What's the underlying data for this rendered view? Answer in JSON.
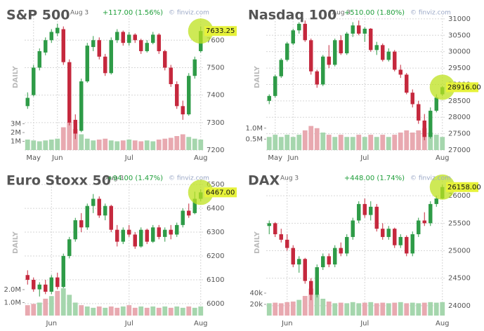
{
  "chart_data": [
    {
      "type": "candlestick",
      "title": "S&P 500",
      "date_label": "Aug 3",
      "change": "+117.00 (1.56%)",
      "watermark": "© finviz.com",
      "period": "DAILY",
      "last_label": "7633.25",
      "categories": [
        null,
        "May",
        null,
        null,
        null,
        "Jun",
        null,
        null,
        null,
        null,
        null,
        null,
        null,
        null,
        null,
        null,
        null,
        "Jul",
        null,
        null,
        null,
        null,
        null,
        null,
        null,
        null,
        null,
        null,
        null,
        "Aug"
      ],
      "ohlc": [
        [
          7360,
          7410,
          7350,
          7390
        ],
        [
          7400,
          7510,
          7395,
          7500
        ],
        [
          7500,
          7570,
          7490,
          7560
        ],
        [
          7555,
          7610,
          7545,
          7600
        ],
        [
          7600,
          7640,
          7590,
          7630
        ],
        [
          7625,
          7660,
          7615,
          7645
        ],
        [
          7640,
          7650,
          7510,
          7520
        ],
        [
          7520,
          7530,
          7290,
          7300
        ],
        [
          7310,
          7330,
          7240,
          7260
        ],
        [
          7270,
          7460,
          7265,
          7450
        ],
        [
          7450,
          7590,
          7445,
          7580
        ],
        [
          7575,
          7615,
          7560,
          7600
        ],
        [
          7600,
          7610,
          7530,
          7540
        ],
        [
          7540,
          7550,
          7470,
          7480
        ],
        [
          7480,
          7610,
          7475,
          7600
        ],
        [
          7600,
          7640,
          7590,
          7630
        ],
        [
          7630,
          7635,
          7580,
          7590
        ],
        [
          7590,
          7630,
          7580,
          7620
        ],
        [
          7620,
          7625,
          7590,
          7600
        ],
        [
          7600,
          7605,
          7550,
          7560
        ],
        [
          7560,
          7600,
          7555,
          7590
        ],
        [
          7590,
          7630,
          7585,
          7620
        ],
        [
          7620,
          7625,
          7550,
          7560
        ],
        [
          7560,
          7565,
          7490,
          7500
        ],
        [
          7500,
          7510,
          7430,
          7440
        ],
        [
          7440,
          7450,
          7350,
          7360
        ],
        [
          7360,
          7380,
          7310,
          7330
        ],
        [
          7330,
          7480,
          7325,
          7470
        ],
        [
          7470,
          7540,
          7460,
          7530
        ],
        [
          7560,
          7650,
          7555,
          7633.25
        ]
      ],
      "volume": [
        1200000,
        1100000,
        1000000,
        1100000,
        1200000,
        1300000,
        2600000,
        3200000,
        2400000,
        1800000,
        1300000,
        1100000,
        1200000,
        1300000,
        1100000,
        1000000,
        1100000,
        1200000,
        1100000,
        1000000,
        1100000,
        1000000,
        1200000,
        1300000,
        1400000,
        1600000,
        1800000,
        1500000,
        1300000,
        1200000
      ],
      "ylim": [
        7200,
        7690
      ],
      "yticks": [
        7200,
        7300,
        7400,
        7500,
        7600
      ],
      "vlim": [
        0,
        4000000
      ],
      "vticks": [
        {
          "value": 1000000,
          "label": "1M"
        },
        {
          "value": 2000000,
          "label": "2M"
        },
        {
          "value": 3000000,
          "label": "3M"
        }
      ]
    },
    {
      "type": "candlestick",
      "title": "Nasdaq 100",
      "date_label": "Aug 3",
      "change": "+510.00 (1.80%)",
      "watermark": "© finviz.com",
      "period": "DAILY",
      "last_label": "28916.00",
      "categories": [
        null,
        "May",
        null,
        null,
        "Jun",
        null,
        null,
        null,
        null,
        null,
        null,
        null,
        null,
        null,
        null,
        null,
        "Jul",
        null,
        null,
        null,
        null,
        null,
        null,
        null,
        null,
        null,
        null,
        null,
        null,
        "Aug"
      ],
      "ohlc": [
        [
          28500,
          28700,
          28400,
          28650
        ],
        [
          28650,
          29300,
          28600,
          29250
        ],
        [
          29250,
          29800,
          29200,
          29750
        ],
        [
          29750,
          30300,
          29700,
          30250
        ],
        [
          30250,
          30700,
          30200,
          30650
        ],
        [
          30650,
          30900,
          30550,
          30850
        ],
        [
          30850,
          30950,
          30300,
          30350
        ],
        [
          30350,
          30400,
          29300,
          29400
        ],
        [
          29400,
          29450,
          28900,
          29000
        ],
        [
          29000,
          29900,
          28950,
          29850
        ],
        [
          29850,
          30200,
          29500,
          29600
        ],
        [
          29600,
          30400,
          29550,
          30350
        ],
        [
          30350,
          30500,
          29900,
          29950
        ],
        [
          29950,
          30600,
          29900,
          30550
        ],
        [
          30550,
          30900,
          30450,
          30800
        ],
        [
          30800,
          30950,
          30500,
          30550
        ],
        [
          30550,
          30750,
          30300,
          30700
        ],
        [
          30700,
          30720,
          30000,
          30050
        ],
        [
          30050,
          30300,
          29900,
          30200
        ],
        [
          30200,
          30250,
          29700,
          29750
        ],
        [
          29750,
          30100,
          29700,
          30000
        ],
        [
          30000,
          30050,
          29400,
          29450
        ],
        [
          29450,
          29600,
          29200,
          29300
        ],
        [
          29300,
          29350,
          28700,
          28750
        ],
        [
          28750,
          28850,
          28300,
          28400
        ],
        [
          28400,
          28500,
          27800,
          27900
        ],
        [
          27900,
          28100,
          27300,
          27400
        ],
        [
          27400,
          28300,
          27350,
          28200
        ],
        [
          28200,
          28700,
          28150,
          28600
        ],
        [
          28700,
          28950,
          28650,
          28916
        ]
      ],
      "volume": [
        600000,
        700000,
        600000,
        700000,
        600000,
        700000,
        900000,
        1100000,
        1000000,
        800000,
        700000,
        600000,
        700000,
        600000,
        600000,
        700000,
        600000,
        700000,
        600000,
        700000,
        600000,
        700000,
        800000,
        900000,
        800000,
        900000,
        1000000,
        800000,
        700000,
        600000
      ],
      "ylim": [
        27000,
        31105
      ],
      "yticks": [
        27000,
        27500,
        28000,
        28500,
        29000,
        29500,
        30000,
        30500,
        31000
      ],
      "vlim": [
        0,
        1600000
      ],
      "vticks": [
        {
          "value": 500000,
          "label": "0.5M"
        },
        {
          "value": 1000000,
          "label": "1.0M"
        }
      ]
    },
    {
      "type": "candlestick",
      "title": "Euro Stoxx 50",
      "date_label": "Aug 3",
      "change": "+94.00 (1.47%)",
      "watermark": "© finviz.com",
      "period": "DAILY",
      "last_label": "6467.00",
      "categories": [
        null,
        null,
        null,
        null,
        "Jun",
        null,
        null,
        null,
        null,
        null,
        null,
        null,
        null,
        null,
        null,
        null,
        null,
        "Jul",
        null,
        null,
        null,
        null,
        null,
        null,
        null,
        null,
        null,
        null,
        null,
        "Aug"
      ],
      "ohlc": [
        [
          6120,
          6140,
          6080,
          6100
        ],
        [
          6100,
          6110,
          6050,
          6060
        ],
        [
          6060,
          6090,
          6030,
          6080
        ],
        [
          6080,
          6100,
          6040,
          6050
        ],
        [
          6050,
          6120,
          6040,
          6110
        ],
        [
          6110,
          6130,
          6060,
          6070
        ],
        [
          6070,
          6210,
          6065,
          6200
        ],
        [
          6200,
          6280,
          6190,
          6270
        ],
        [
          6270,
          6360,
          6260,
          6350
        ],
        [
          6350,
          6380,
          6300,
          6320
        ],
        [
          6320,
          6420,
          6310,
          6410
        ],
        [
          6410,
          6460,
          6380,
          6440
        ],
        [
          6440,
          6450,
          6360,
          6370
        ],
        [
          6370,
          6420,
          6350,
          6410
        ],
        [
          6410,
          6415,
          6300,
          6310
        ],
        [
          6310,
          6330,
          6240,
          6260
        ],
        [
          6260,
          6320,
          6250,
          6310
        ],
        [
          6310,
          6330,
          6280,
          6290
        ],
        [
          6290,
          6300,
          6230,
          6240
        ],
        [
          6240,
          6320,
          6235,
          6310
        ],
        [
          6310,
          6315,
          6250,
          6260
        ],
        [
          6260,
          6330,
          6255,
          6320
        ],
        [
          6320,
          6330,
          6270,
          6280
        ],
        [
          6280,
          6320,
          6260,
          6310
        ],
        [
          6310,
          6330,
          6270,
          6290
        ],
        [
          6290,
          6340,
          6280,
          6330
        ],
        [
          6330,
          6400,
          6320,
          6390
        ],
        [
          6390,
          6420,
          6360,
          6370
        ],
        [
          6380,
          6470,
          6375,
          6440
        ],
        [
          6440,
          6480,
          6430,
          6467
        ]
      ],
      "volume": [
        800000,
        900000,
        1000000,
        1300000,
        1500000,
        1900000,
        2100000,
        1600000,
        1000000,
        800000,
        700000,
        600000,
        700000,
        600000,
        700000,
        600000,
        700000,
        800000,
        600000,
        700000,
        600000,
        700000,
        600000,
        700000,
        600000,
        700000,
        600000,
        700000,
        600000,
        700000
      ],
      "ylim": [
        5950,
        6515
      ],
      "yticks": [
        6000,
        6100,
        6200,
        6300,
        6400,
        6500
      ],
      "vlim": [
        0,
        2700000
      ],
      "vticks": [
        {
          "value": 1000000,
          "label": "1.0M"
        },
        {
          "value": 2000000,
          "label": "2.0M"
        }
      ]
    },
    {
      "type": "candlestick",
      "title": "DAX",
      "date_label": "Aug 3",
      "change": "+448.00 (1.74%)",
      "watermark": "© finviz.com",
      "period": "DAILY",
      "last_label": "26158.00",
      "categories": [
        null,
        null,
        null,
        "Jun",
        null,
        null,
        null,
        null,
        null,
        null,
        null,
        null,
        null,
        null,
        null,
        null,
        "Jul",
        null,
        null,
        null,
        null,
        null,
        null,
        null,
        null,
        null,
        null,
        null,
        null,
        "Aug"
      ],
      "ohlc": [
        [
          25450,
          25550,
          25300,
          25500
        ],
        [
          25500,
          25520,
          25250,
          25300
        ],
        [
          25300,
          25400,
          25150,
          25200
        ],
        [
          25200,
          25300,
          25000,
          25050
        ],
        [
          25050,
          25100,
          24700,
          24750
        ],
        [
          24750,
          24900,
          24600,
          24850
        ],
        [
          24850,
          24870,
          24400,
          24450
        ],
        [
          24450,
          24500,
          24100,
          24200
        ],
        [
          24200,
          24750,
          24150,
          24700
        ],
        [
          24700,
          24950,
          24650,
          24900
        ],
        [
          24900,
          24950,
          24700,
          24750
        ],
        [
          24750,
          25100,
          24700,
          25050
        ],
        [
          25050,
          25150,
          24900,
          24950
        ],
        [
          24950,
          25300,
          24900,
          25250
        ],
        [
          25250,
          25600,
          25200,
          25550
        ],
        [
          25550,
          25900,
          25500,
          25850
        ],
        [
          25850,
          25950,
          25600,
          25650
        ],
        [
          25650,
          25900,
          25550,
          25800
        ],
        [
          25800,
          25850,
          25350,
          25400
        ],
        [
          25400,
          25500,
          25200,
          25250
        ],
        [
          25250,
          25450,
          25200,
          25400
        ],
        [
          25400,
          25420,
          25050,
          25100
        ],
        [
          25100,
          25300,
          25050,
          25250
        ],
        [
          25250,
          25280,
          24900,
          24950
        ],
        [
          24950,
          25350,
          24900,
          25300
        ],
        [
          25300,
          25600,
          25250,
          25550
        ],
        [
          25550,
          25700,
          25450,
          25500
        ],
        [
          25500,
          25900,
          25450,
          25850
        ],
        [
          25850,
          26000,
          25800,
          25950
        ],
        [
          25950,
          26200,
          25940,
          26158
        ]
      ],
      "volume": [
        22000,
        23000,
        22000,
        24000,
        25000,
        28000,
        35000,
        48000,
        38000,
        30000,
        25000,
        22000,
        23000,
        22000,
        24000,
        22000,
        23000,
        24000,
        22000,
        23000,
        22000,
        23000,
        24000,
        22000,
        23000,
        22000,
        23000,
        24000,
        23000,
        24000
      ],
      "ylim": [
        23820,
        26270
      ],
      "yticks": [
        24000,
        24500,
        25000,
        25500,
        26000
      ],
      "vlim": [
        0,
        62500
      ],
      "vticks": [
        {
          "value": 20000,
          "label": "20k"
        },
        {
          "value": 40000,
          "label": "40k"
        }
      ]
    }
  ]
}
